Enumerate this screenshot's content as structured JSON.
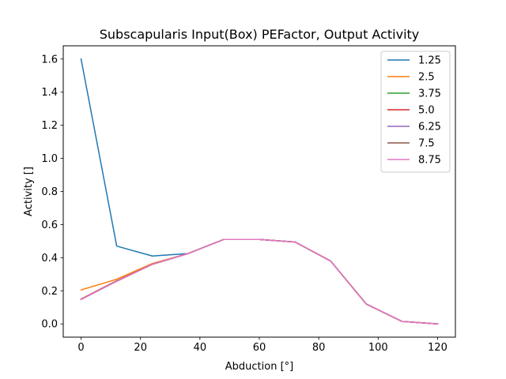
{
  "chart_data": {
    "type": "line",
    "title": "Subscapularis Input(Box) PEFactor, Output Activity",
    "xlabel": "Abduction [°]",
    "ylabel": "Activity []",
    "xlim": [
      -6,
      126
    ],
    "ylim": [
      -0.08,
      1.68
    ],
    "xticks": [
      0,
      20,
      40,
      60,
      80,
      100,
      120
    ],
    "yticks": [
      0.0,
      0.2,
      0.4,
      0.6,
      0.8,
      1.0,
      1.2,
      1.4,
      1.6
    ],
    "grid": false,
    "legend_position": "top-right",
    "x": [
      0,
      12,
      24,
      36,
      48,
      60,
      72,
      84,
      96,
      108,
      120
    ],
    "series": [
      {
        "name": "1.25",
        "color": "#1f77b4",
        "values": [
          1.6,
          0.47,
          0.41,
          0.425,
          0.51,
          0.51,
          0.495,
          0.38,
          0.12,
          0.015,
          0.0
        ]
      },
      {
        "name": "2.5",
        "color": "#ff7f0e",
        "values": [
          0.205,
          0.27,
          0.365,
          0.425,
          0.51,
          0.51,
          0.495,
          0.38,
          0.12,
          0.015,
          0.0
        ]
      },
      {
        "name": "3.75",
        "color": "#2ca02c",
        "values": [
          0.15,
          0.26,
          0.36,
          0.425,
          0.51,
          0.51,
          0.495,
          0.38,
          0.12,
          0.015,
          0.0
        ]
      },
      {
        "name": "5.0",
        "color": "#d62728",
        "values": [
          0.15,
          0.26,
          0.36,
          0.425,
          0.51,
          0.51,
          0.495,
          0.38,
          0.12,
          0.015,
          0.0
        ]
      },
      {
        "name": "6.25",
        "color": "#9467bd",
        "values": [
          0.148,
          0.258,
          0.36,
          0.425,
          0.51,
          0.51,
          0.495,
          0.38,
          0.12,
          0.015,
          0.0
        ]
      },
      {
        "name": "7.5",
        "color": "#8c564b",
        "values": [
          0.148,
          0.258,
          0.36,
          0.425,
          0.51,
          0.51,
          0.495,
          0.38,
          0.12,
          0.015,
          0.0
        ]
      },
      {
        "name": "8.75",
        "color": "#e377c2",
        "values": [
          0.148,
          0.258,
          0.36,
          0.425,
          0.51,
          0.51,
          0.495,
          0.38,
          0.12,
          0.015,
          0.0
        ]
      }
    ]
  }
}
